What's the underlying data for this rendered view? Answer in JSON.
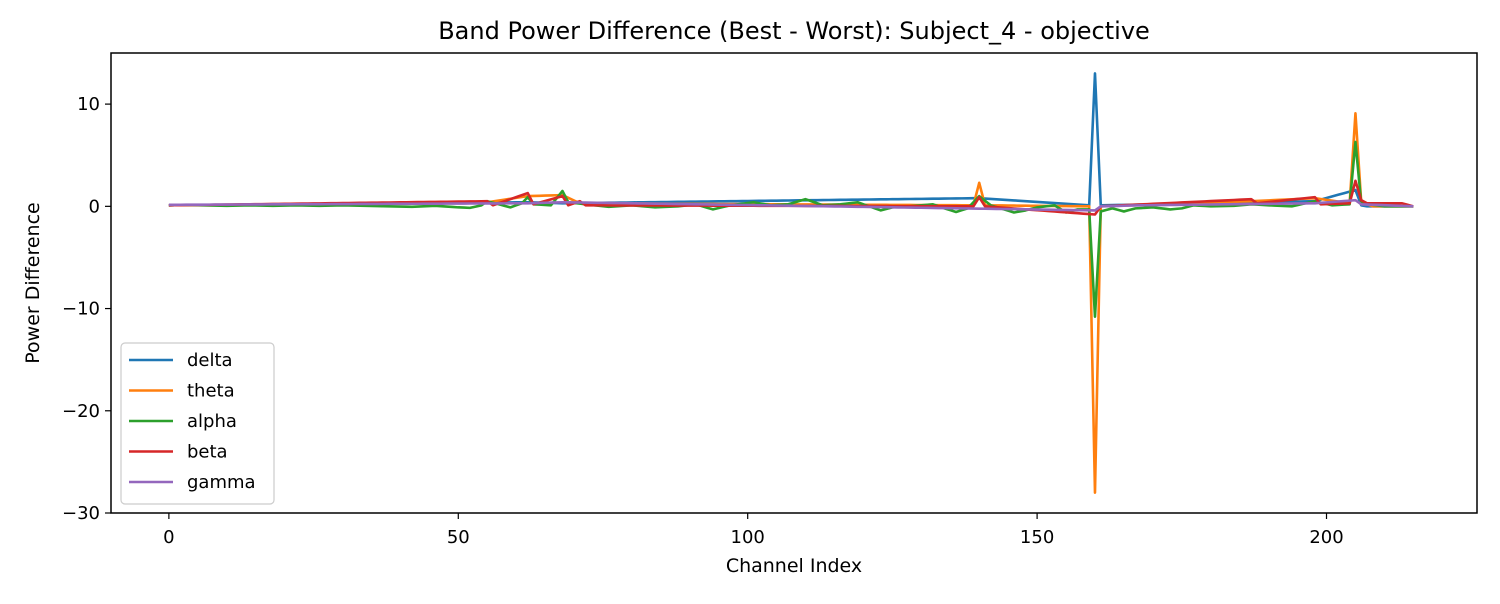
{
  "chart_data": {
    "type": "line",
    "title": "Band Power Difference (Best - Worst): Subject_4 - objective",
    "xlabel": "Channel Index",
    "ylabel": "Power Difference",
    "xlim": [
      -10,
      226
    ],
    "ylim": [
      -30,
      15
    ],
    "xticks": [
      0,
      50,
      100,
      150,
      200
    ],
    "xtick_labels": [
      "0",
      "50",
      "100",
      "150",
      "200"
    ],
    "yticks": [
      -30,
      -20,
      -10,
      0,
      10
    ],
    "ytick_labels": [
      "−30",
      "−20",
      "−10",
      "0",
      "10"
    ],
    "grid": false,
    "legend_position": "lower-left",
    "n_points": 216,
    "series": [
      {
        "name": "delta",
        "color": "#1f77b4",
        "default": 0,
        "points": [
          [
            0,
            0.1
          ],
          [
            62,
            0.4
          ],
          [
            68,
            0.3
          ],
          [
            140,
            0.8
          ],
          [
            159,
            0.1
          ],
          [
            160,
            13.0
          ],
          [
            161,
            0.1
          ],
          [
            198,
            0.5
          ],
          [
            205,
            1.6
          ],
          [
            206,
            0.1
          ]
        ]
      },
      {
        "name": "theta",
        "color": "#ff7f0e",
        "default": 0,
        "points": [
          [
            0,
            0.1
          ],
          [
            55,
            0.4
          ],
          [
            62,
            1.0
          ],
          [
            68,
            1.1
          ],
          [
            71,
            0.3
          ],
          [
            139,
            0.1
          ],
          [
            140,
            2.3
          ],
          [
            141,
            0.1
          ],
          [
            159,
            0.0
          ],
          [
            160,
            -28.0
          ],
          [
            161,
            0.0
          ],
          [
            187,
            0.5
          ],
          [
            198,
            0.8
          ],
          [
            204,
            0.3
          ],
          [
            205,
            9.1
          ],
          [
            206,
            0.4
          ],
          [
            207,
            0.2
          ]
        ]
      },
      {
        "name": "alpha",
        "color": "#2ca02c",
        "default": 0,
        "points": [
          [
            0,
            0.1
          ],
          [
            3,
            0.15
          ],
          [
            6,
            0.1
          ],
          [
            10,
            0.05
          ],
          [
            14,
            0.1
          ],
          [
            18,
            0.05
          ],
          [
            22,
            0.1
          ],
          [
            26,
            0.05
          ],
          [
            30,
            0.1
          ],
          [
            34,
            0.05
          ],
          [
            38,
            0.0
          ],
          [
            42,
            -0.05
          ],
          [
            46,
            0.05
          ],
          [
            50,
            -0.1
          ],
          [
            52,
            -0.15
          ],
          [
            54,
            0.1
          ],
          [
            55,
            0.5
          ],
          [
            57,
            0.2
          ],
          [
            59,
            -0.1
          ],
          [
            61,
            0.3
          ],
          [
            62,
            0.9
          ],
          [
            63,
            0.2
          ],
          [
            66,
            0.1
          ],
          [
            68,
            1.5
          ],
          [
            69,
            0.4
          ],
          [
            72,
            0.2
          ],
          [
            76,
            -0.05
          ],
          [
            80,
            0.1
          ],
          [
            84,
            -0.1
          ],
          [
            88,
            0.0
          ],
          [
            91,
            0.2
          ],
          [
            94,
            -0.3
          ],
          [
            97,
            0.1
          ],
          [
            101,
            0.4
          ],
          [
            104,
            0.1
          ],
          [
            107,
            0.2
          ],
          [
            110,
            0.7
          ],
          [
            113,
            0.1
          ],
          [
            116,
            0.2
          ],
          [
            119,
            0.4
          ],
          [
            121,
            0.0
          ],
          [
            123,
            -0.4
          ],
          [
            125,
            -0.1
          ],
          [
            128,
            0.0
          ],
          [
            132,
            0.2
          ],
          [
            134,
            -0.2
          ],
          [
            136,
            -0.55
          ],
          [
            138,
            -0.2
          ],
          [
            140,
            1.0
          ],
          [
            142,
            0.1
          ],
          [
            146,
            -0.6
          ],
          [
            148,
            -0.4
          ],
          [
            150,
            -0.1
          ],
          [
            153,
            0.1
          ],
          [
            155,
            -0.6
          ],
          [
            157,
            -0.3
          ],
          [
            159,
            -0.3
          ],
          [
            160,
            -10.8
          ],
          [
            161,
            -0.5
          ],
          [
            163,
            -0.2
          ],
          [
            165,
            -0.5
          ],
          [
            167,
            -0.2
          ],
          [
            170,
            -0.1
          ],
          [
            173,
            -0.3
          ],
          [
            175,
            -0.2
          ],
          [
            177,
            0.1
          ],
          [
            180,
            0.0
          ],
          [
            184,
            0.05
          ],
          [
            187,
            0.2
          ],
          [
            190,
            0.1
          ],
          [
            194,
            0.0
          ],
          [
            198,
            0.5
          ],
          [
            201,
            0.1
          ],
          [
            204,
            0.2
          ],
          [
            205,
            6.3
          ],
          [
            206,
            0.3
          ],
          [
            210,
            0.0
          ],
          [
            215,
            0.0
          ]
        ]
      },
      {
        "name": "beta",
        "color": "#d62728",
        "default": 0,
        "points": [
          [
            0,
            0.1
          ],
          [
            55,
            0.5
          ],
          [
            56,
            0.1
          ],
          [
            62,
            1.3
          ],
          [
            63,
            0.2
          ],
          [
            68,
            1.0
          ],
          [
            69,
            0.1
          ],
          [
            71,
            0.5
          ],
          [
            72,
            0.1
          ],
          [
            139,
            0.0
          ],
          [
            140,
            0.9
          ],
          [
            141,
            0.0
          ],
          [
            160,
            -0.8
          ],
          [
            161,
            0.0
          ],
          [
            187,
            0.7
          ],
          [
            188,
            0.3
          ],
          [
            198,
            0.9
          ],
          [
            199,
            0.2
          ],
          [
            204,
            0.3
          ],
          [
            205,
            2.5
          ],
          [
            206,
            0.6
          ],
          [
            207,
            0.3
          ],
          [
            211,
            0.3
          ],
          [
            213,
            0.3
          ],
          [
            215,
            0.0
          ]
        ]
      },
      {
        "name": "gamma",
        "color": "#9467bd",
        "default": 0,
        "points": [
          [
            0,
            0.15
          ],
          [
            62,
            0.3
          ],
          [
            68,
            0.4
          ],
          [
            160,
            -0.4
          ],
          [
            161,
            0.0
          ],
          [
            168,
            0.1
          ],
          [
            198,
            0.3
          ],
          [
            205,
            0.6
          ],
          [
            206,
            0.2
          ],
          [
            215,
            0.0
          ]
        ]
      }
    ]
  }
}
